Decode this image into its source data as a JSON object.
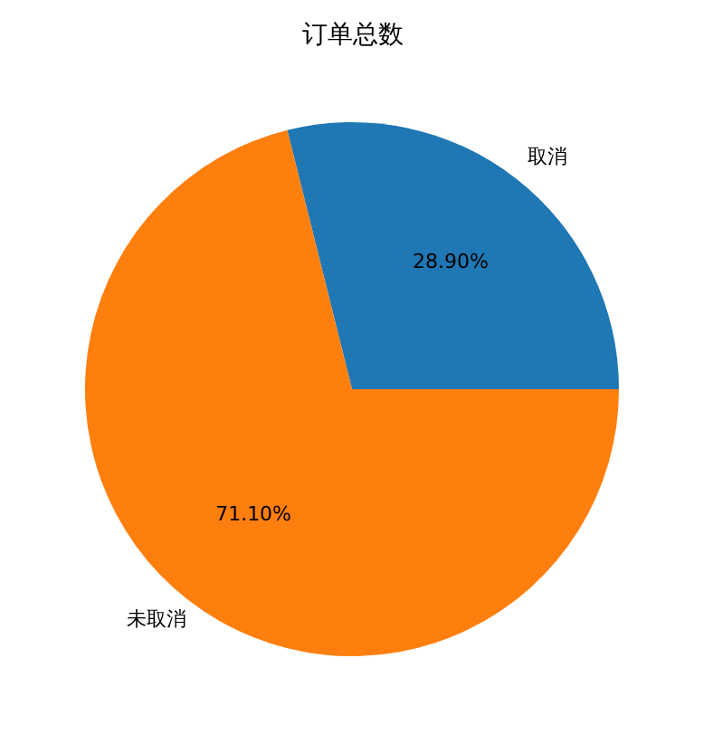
{
  "chart_data": {
    "type": "pie",
    "title": "订单总数",
    "categories": [
      "取消",
      "未取消"
    ],
    "values": [
      28.9,
      71.1
    ],
    "colors": [
      "#1f77b4",
      "#ff7f0e"
    ],
    "value_labels": [
      "28.90%",
      "71.10%"
    ],
    "legend": false
  }
}
